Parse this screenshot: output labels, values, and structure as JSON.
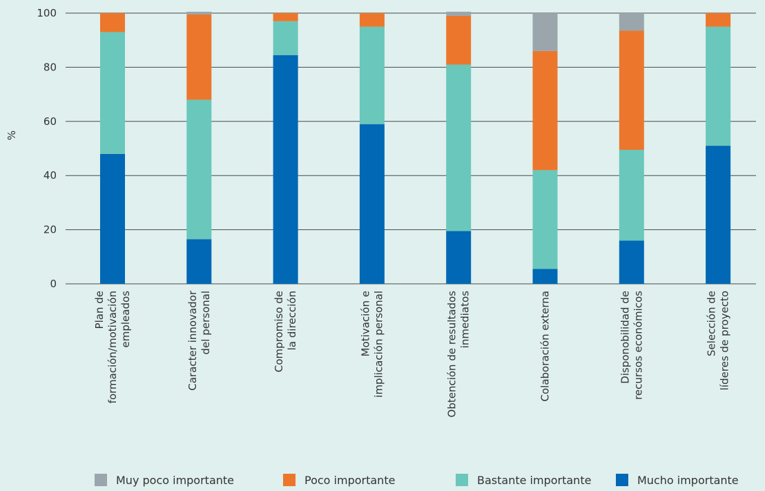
{
  "chart_data": {
    "type": "bar",
    "stacked": true,
    "ylabel": "%",
    "xlabel": "",
    "ylim": [
      0,
      100
    ],
    "yticks": [
      "0",
      "20",
      "40",
      "60",
      "80",
      "100"
    ],
    "grid": true,
    "legend_position": "bottom",
    "categories": [
      [
        "Plan de",
        "formación/motivación",
        "empleados"
      ],
      [
        "Caracter innovador",
        "del personal"
      ],
      [
        "Compromiso de",
        "la dirección"
      ],
      [
        "Motivación e",
        "implicación personal"
      ],
      [
        "Obtención de resultados",
        "inmediatos"
      ],
      [
        "Colaboración externa"
      ],
      [
        "Disponobilidad de",
        "recursos económicos"
      ],
      [
        "Selección de",
        "líderes de proyecto"
      ]
    ],
    "series": [
      {
        "name": "Mucho importante",
        "color": "#0068b4",
        "values": [
          48,
          16.5,
          84.5,
          59,
          19.5,
          5.5,
          16,
          51
        ]
      },
      {
        "name": "Bastante importante",
        "color": "#6ac7bb",
        "values": [
          45,
          51.5,
          12.5,
          36,
          61.5,
          36.5,
          33.5,
          44
        ]
      },
      {
        "name": "Poco importante",
        "color": "#ec772c",
        "values": [
          7,
          31.5,
          3,
          5,
          18,
          44,
          44,
          5
        ]
      },
      {
        "name": "Muy poco importante",
        "color": "#9aa6ab",
        "values": [
          0,
          1,
          0,
          0,
          1.5,
          14,
          6.5,
          0
        ]
      }
    ],
    "legend_order": [
      "Muy poco importante",
      "Poco importante",
      "Bastante importante",
      "Mucho importante"
    ]
  }
}
